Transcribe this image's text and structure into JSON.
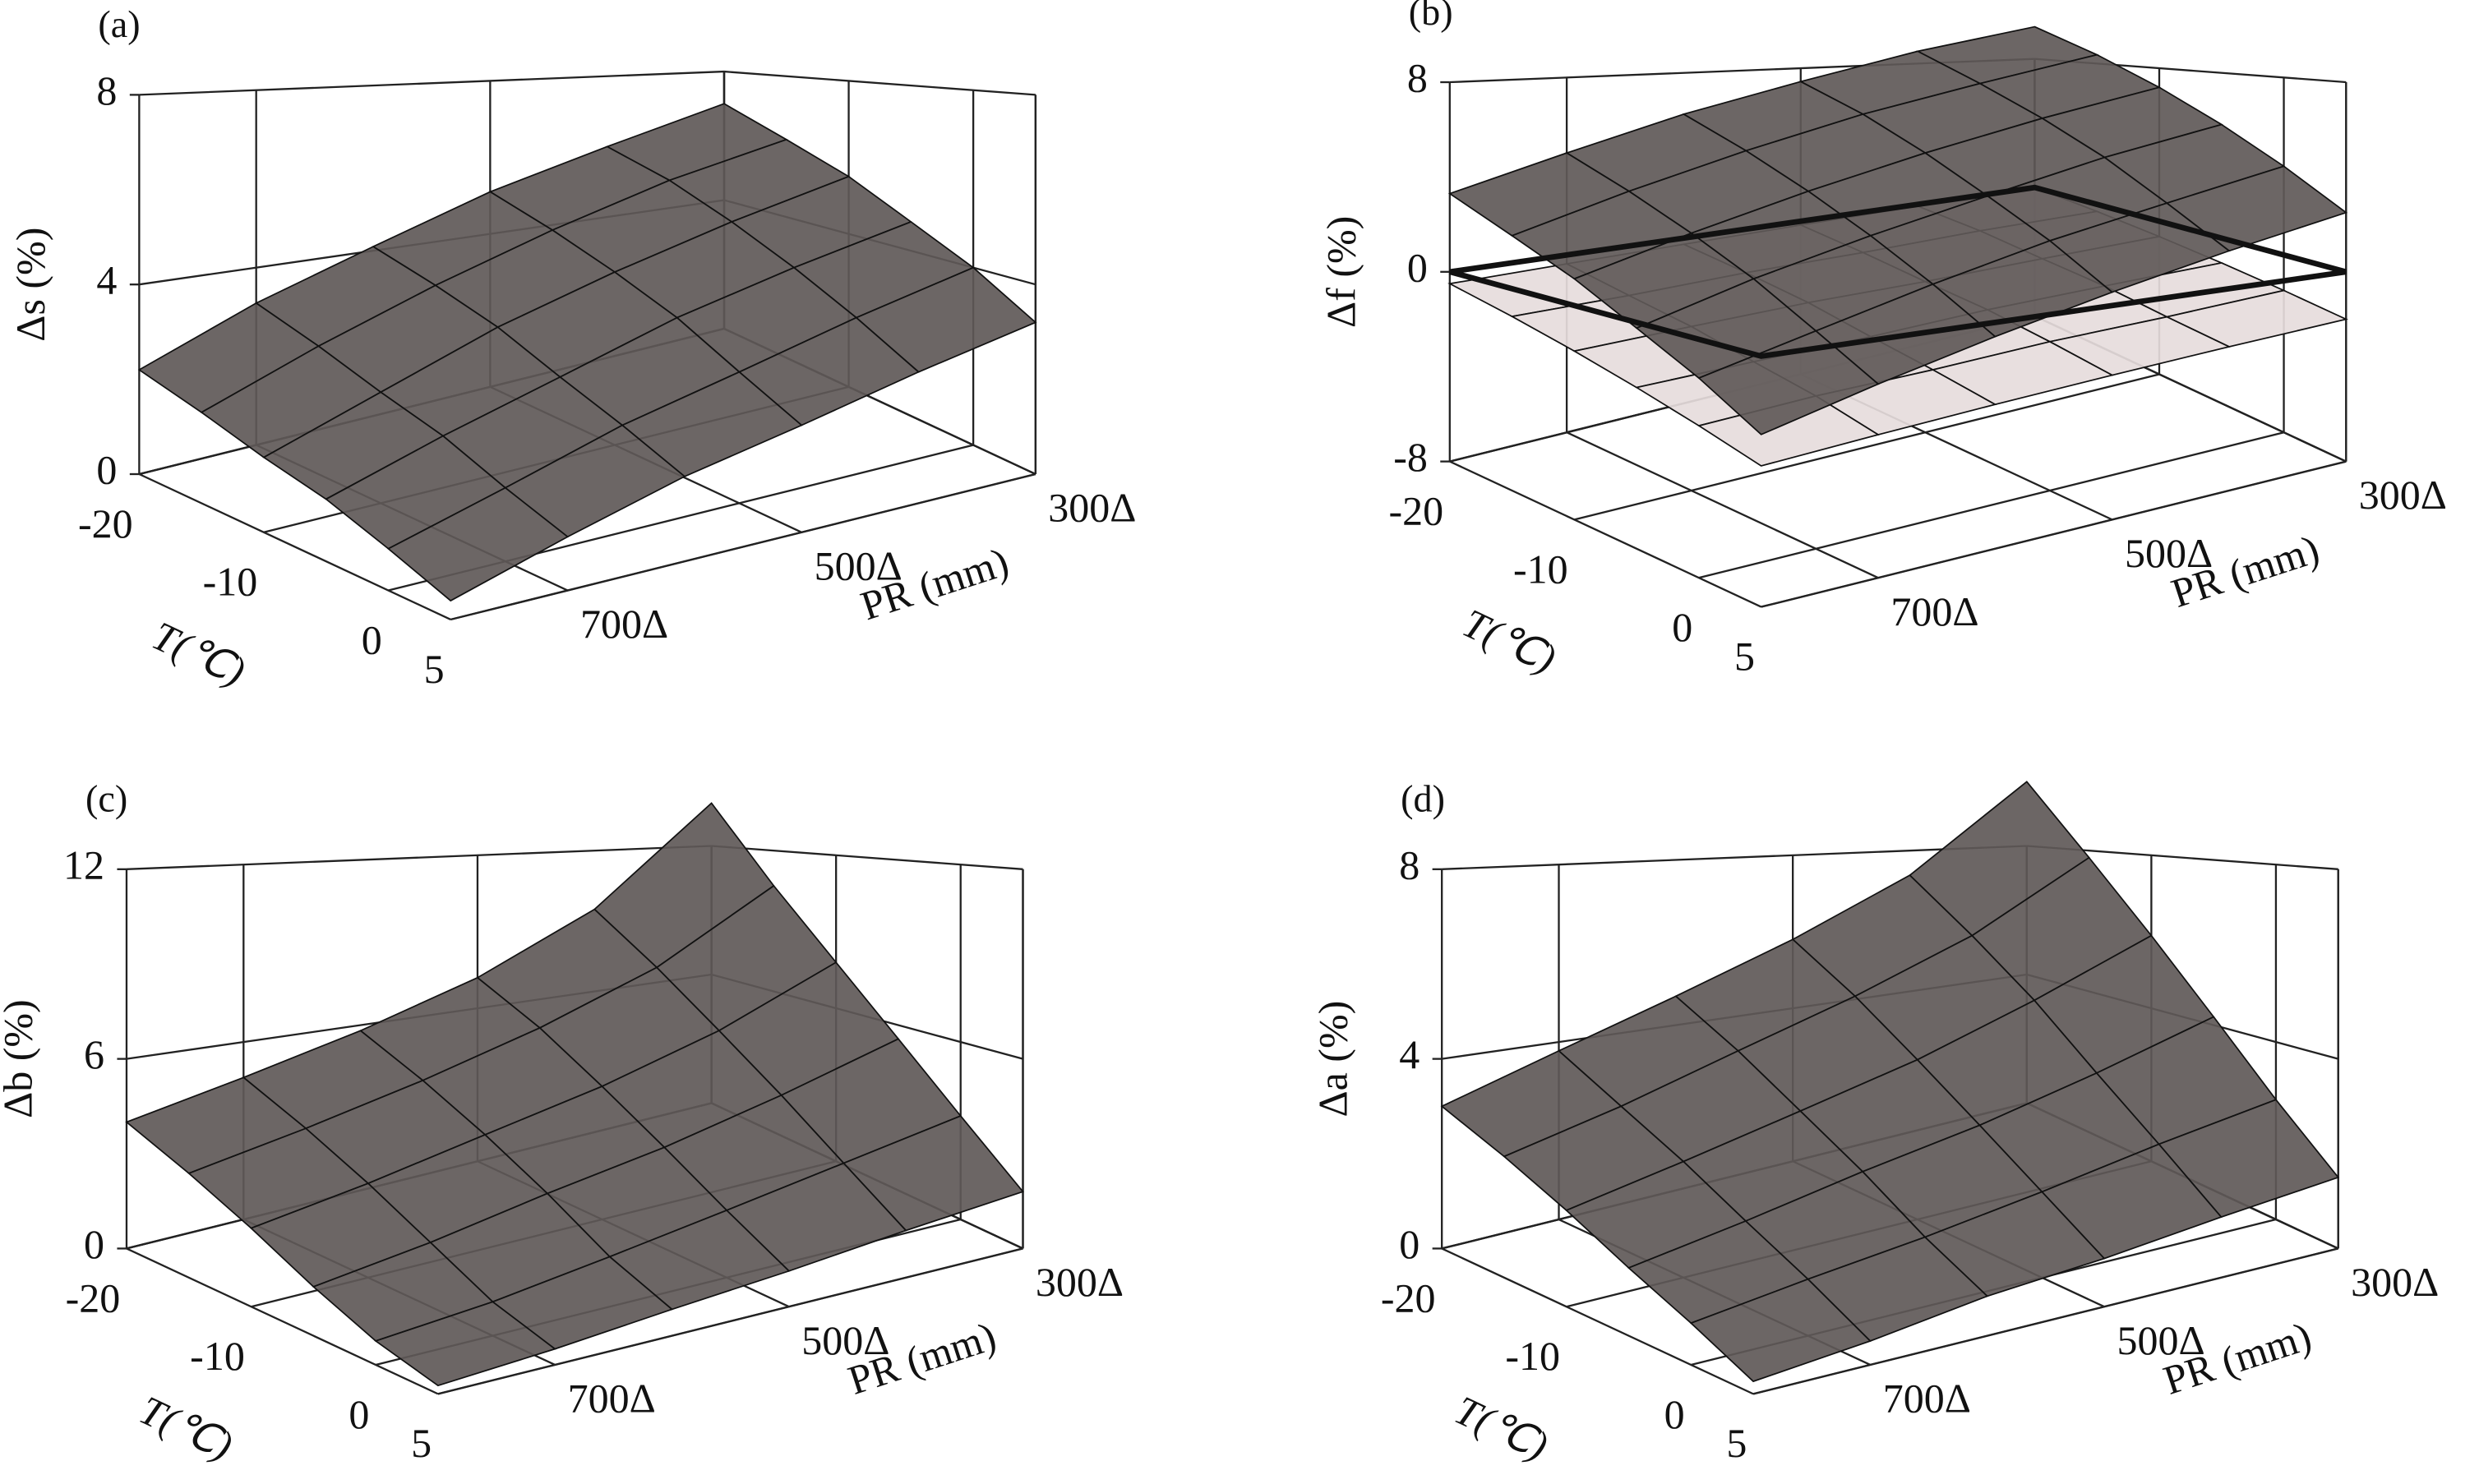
{
  "chart_data": [
    {
      "type": "surface",
      "panel_label": "(a)",
      "zlabel": "Δs (%)",
      "xlabel": "PR (mm)",
      "ylabel": "T(℃)",
      "x": [
        300,
        400,
        500,
        600,
        700,
        800
      ],
      "y": [
        -20,
        -15,
        -10,
        -5,
        0,
        5
      ],
      "xlim": [
        300,
        800
      ],
      "ylim": [
        -20,
        5
      ],
      "zlim": [
        0,
        8
      ],
      "xticks": [
        {
          "value": 300,
          "label": "300Δ"
        },
        {
          "value": 500,
          "label": "500Δ"
        },
        {
          "value": 700,
          "label": "700Δ"
        }
      ],
      "yticks": [
        -20,
        -10,
        0,
        5
      ],
      "zticks": [
        0,
        4,
        8
      ],
      "series": [
        {
          "color": "#5f5958",
          "values": [
            [
              7.0,
              6.0,
              5.1,
              4.1,
              3.2,
              2.2
            ],
            [
              6.2,
              5.4,
              4.5,
              3.6,
              2.7,
              1.8
            ],
            [
              5.5,
              4.7,
              3.9,
              3.1,
              2.2,
              1.4
            ],
            [
              4.7,
              4.0,
              3.3,
              2.5,
              1.8,
              1.1
            ],
            [
              4.0,
              3.3,
              2.6,
              2.0,
              1.3,
              0.7
            ],
            [
              3.2,
              2.6,
              2.0,
              1.5,
              0.9,
              0.3
            ]
          ]
        }
      ]
    },
    {
      "type": "surface",
      "panel_label": "(b)",
      "zlabel": "Δf (%)",
      "xlabel": "PR (mm)",
      "ylabel": "T(℃)",
      "x": [
        300,
        400,
        500,
        600,
        700,
        800
      ],
      "y": [
        -20,
        -15,
        -10,
        -5,
        0,
        5
      ],
      "xlim": [
        300,
        800
      ],
      "ylim": [
        -20,
        5
      ],
      "zlim": [
        -8,
        8
      ],
      "xticks": [
        {
          "value": 300,
          "label": "300Δ"
        },
        {
          "value": 500,
          "label": "500Δ"
        },
        {
          "value": 700,
          "label": "700Δ"
        }
      ],
      "yticks": [
        -20,
        -10,
        0,
        5
      ],
      "zticks": [
        -8,
        0,
        8
      ],
      "reference_plane": 0,
      "series": [
        {
          "color": "#e6dcdc",
          "values": [
            [
              0.0,
              -0.1,
              -0.2,
              -0.3,
              -0.4,
              -0.5
            ],
            [
              -0.4,
              -0.5,
              -0.7,
              -0.8,
              -1.0,
              -1.1
            ],
            [
              -0.8,
              -1.0,
              -1.2,
              -1.3,
              -1.5,
              -1.7
            ],
            [
              -1.2,
              -1.4,
              -1.6,
              -1.9,
              -2.1,
              -2.3
            ],
            [
              -1.6,
              -1.9,
              -2.1,
              -2.4,
              -2.6,
              -2.9
            ],
            [
              -2.0,
              -2.3,
              -2.6,
              -2.9,
              -3.2,
              -3.5
            ]
          ]
        },
        {
          "color": "#5f5958",
          "values": [
            [
              10.0,
              8.7,
              7.3,
              6.0,
              4.6,
              3.3
            ],
            [
              8.5,
              7.2,
              6.0,
              4.7,
              3.4,
              2.1
            ],
            [
              7.0,
              5.8,
              4.6,
              3.4,
              2.2,
              1.0
            ],
            [
              5.5,
              4.4,
              3.2,
              2.1,
              1.0,
              -0.2
            ],
            [
              4.0,
              2.9,
              1.9,
              0.8,
              -0.3,
              -1.3
            ],
            [
              2.5,
              1.5,
              0.5,
              -0.5,
              -1.5,
              -2.5
            ]
          ]
        }
      ]
    },
    {
      "type": "surface",
      "panel_label": "(c)",
      "zlabel": "Δb (%)",
      "xlabel": "PR (mm)",
      "ylabel": "T(℃)",
      "x": [
        300,
        400,
        500,
        600,
        700,
        800
      ],
      "y": [
        -20,
        -15,
        -10,
        -5,
        0,
        5
      ],
      "xlim": [
        300,
        800
      ],
      "ylim": [
        -20,
        5
      ],
      "zlim": [
        0,
        12
      ],
      "xticks": [
        {
          "value": 300,
          "label": "300Δ"
        },
        {
          "value": 500,
          "label": "500Δ"
        },
        {
          "value": 700,
          "label": "700Δ"
        }
      ],
      "yticks": [
        -20,
        -10,
        0,
        5
      ],
      "zticks": [
        0,
        6,
        12
      ],
      "series": [
        {
          "color": "#5f5958",
          "values": [
            [
              14.0,
              9.5,
              7.2,
              5.8,
              4.8,
              4.0
            ],
            [
              10.5,
              7.6,
              5.9,
              4.7,
              3.8,
              3.1
            ],
            [
              7.8,
              5.8,
              4.5,
              3.6,
              2.8,
              2.2
            ],
            [
              5.5,
              4.2,
              3.2,
              2.5,
              1.8,
              1.3
            ],
            [
              3.5,
              2.7,
              2.0,
              1.4,
              0.9,
              0.6
            ],
            [
              1.8,
              1.4,
              1.0,
              0.7,
              0.4,
              0.2
            ]
          ]
        }
      ]
    },
    {
      "type": "surface",
      "panel_label": "(d)",
      "zlabel": "Δa (%)",
      "xlabel": "PR (mm)",
      "ylabel": "T(℃)",
      "x": [
        300,
        400,
        500,
        600,
        700,
        800
      ],
      "y": [
        -20,
        -15,
        -10,
        -5,
        0,
        5
      ],
      "xlim": [
        300,
        800
      ],
      "ylim": [
        -20,
        5
      ],
      "zlim": [
        0,
        8
      ],
      "xticks": [
        {
          "value": 300,
          "label": "300Δ"
        },
        {
          "value": 500,
          "label": "500Δ"
        },
        {
          "value": 700,
          "label": "700Δ"
        }
      ],
      "yticks": [
        -20,
        -10,
        0,
        5
      ],
      "zticks": [
        0,
        4,
        8
      ],
      "series": [
        {
          "color": "#5f5958",
          "values": [
            [
              10.0,
              7.3,
              5.8,
              4.7,
              3.8,
              3.0
            ],
            [
              7.8,
              5.9,
              4.7,
              3.8,
              3.0,
              2.4
            ],
            [
              5.9,
              4.6,
              3.6,
              2.9,
              2.3,
              1.8
            ],
            [
              4.2,
              3.3,
              2.6,
              2.1,
              1.6,
              1.2
            ],
            [
              2.7,
              2.2,
              1.7,
              1.3,
              1.0,
              0.7
            ],
            [
              1.5,
              1.2,
              0.9,
              0.7,
              0.4,
              0.2
            ]
          ]
        }
      ]
    }
  ]
}
